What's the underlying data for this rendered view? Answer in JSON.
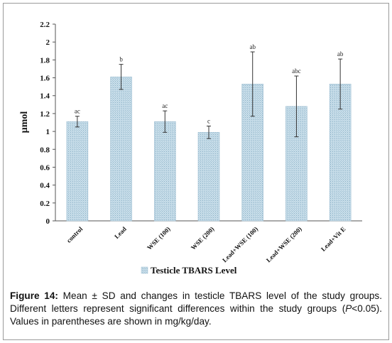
{
  "chart_data": {
    "type": "bar",
    "ylabel": "µmol",
    "ylim": [
      0,
      2.2
    ],
    "yticks": [
      0,
      0.2,
      0.4,
      0.6,
      0.8,
      1,
      1.2,
      1.4,
      1.6,
      1.8,
      2,
      2.2
    ],
    "ytick_labels": [
      "0",
      "0.2",
      "0.4",
      "0.6",
      "0.8",
      "1",
      "1.2",
      "1.4",
      "1.6",
      "1.8",
      "2",
      "2.2"
    ],
    "categories": [
      "control",
      "Lead",
      "WSE (100)",
      "WSE (200)",
      "Lead+WSE (100)",
      "Lead+WSE (200)",
      "Lead+Vit E"
    ],
    "series": [
      {
        "name": "Testicle TBARS Level",
        "values": [
          1.11,
          1.61,
          1.11,
          0.99,
          1.53,
          1.28,
          1.53
        ],
        "errors": [
          0.06,
          0.14,
          0.12,
          0.07,
          0.36,
          0.34,
          0.28
        ],
        "annotations": [
          "ac",
          "b",
          "ac",
          "c",
          "ab",
          "abc",
          "ab"
        ]
      }
    ],
    "bar_color": "#b9d3e2",
    "bar_stroke": "#9fbfd2",
    "grid": false,
    "legend": "bottom"
  },
  "caption": {
    "figure_label": "Figure 14:",
    "text_before_p": " Mean ± SD and changes in testicle TBARS level of the study groups. Different letters represent significant differences within the study groups (",
    "p_symbol": "P",
    "text_after_p": "<0.05). Values in parentheses are shown in mg/kg/day."
  }
}
